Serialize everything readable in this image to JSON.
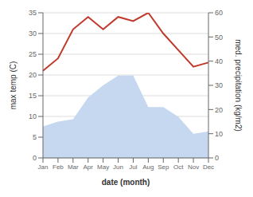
{
  "chart_data": {
    "type": "line",
    "xlabel": "date (month)",
    "ylabel": "max temp (C)",
    "y2label": "med. precipitation (kg/m2)",
    "categories": [
      "Jan",
      "Feb",
      "Mar",
      "Apr",
      "May",
      "Jun",
      "Jul",
      "Aug",
      "Sep",
      "Oct",
      "Nov",
      "Dec"
    ],
    "series": [
      {
        "type": "area",
        "axis": "y2",
        "color": "#c5d8f0",
        "values": [
          13,
          15,
          16,
          25,
          30,
          34,
          34,
          21,
          21,
          17,
          10,
          11
        ]
      },
      {
        "type": "line",
        "color": "#c0392b",
        "values": [
          21,
          24,
          31,
          34,
          31,
          34,
          33,
          35,
          30,
          26,
          22,
          23
        ]
      }
    ],
    "ylim": [
      0,
      35
    ],
    "yticks": [
      0,
      5,
      10,
      15,
      20,
      25,
      30,
      35
    ],
    "y2lim": [
      0,
      60
    ],
    "y2ticks": [
      0,
      10,
      20,
      30,
      40,
      50,
      60
    ],
    "grid": true
  }
}
